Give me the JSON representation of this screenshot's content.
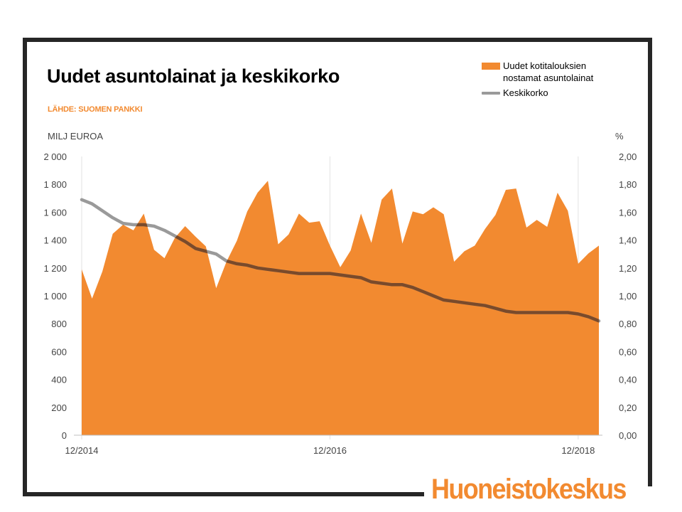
{
  "title": "Uudet asuntolainat ja keskikorko",
  "source": "LÄHDE: SUOMEN PANKKI",
  "logo": "Huoneistokeskus",
  "colors": {
    "area": "#f28a30",
    "line": "#9a9a9a",
    "frame": "#262626"
  },
  "chart_data": {
    "type": "area",
    "left_unit": "MILJ EUROA",
    "right_unit": "%",
    "y_left_ticks": [
      "2 000",
      "1 800",
      "1 600",
      "1 400",
      "1 200",
      "1 000",
      "800",
      "600",
      "400",
      "200",
      "0"
    ],
    "y_right_ticks": [
      "2,00",
      "1,80",
      "1,60",
      "1,40",
      "1,20",
      "1,00",
      "0,80",
      "0,60",
      "0,40",
      "0,20",
      "0,00"
    ],
    "y_left_range": [
      0,
      2000
    ],
    "y_right_range": [
      0,
      2.0
    ],
    "x_tick_labels": [
      "12/2014",
      "12/2016",
      "12/2018"
    ],
    "x_start": "2014-12",
    "x_end": "2019-02",
    "grid": "vertical gridlines at year ticks",
    "legend_position": "top-right",
    "series": [
      {
        "name": "Uudet kotitalouksien nostamat asuntolainat",
        "axis": "left",
        "type": "area",
        "values": [
          1190,
          980,
          1175,
          1445,
          1510,
          1470,
          1590,
          1330,
          1270,
          1415,
          1500,
          1425,
          1355,
          1055,
          1245,
          1395,
          1605,
          1740,
          1825,
          1370,
          1440,
          1590,
          1525,
          1535,
          1360,
          1205,
          1325,
          1590,
          1380,
          1690,
          1770,
          1375,
          1605,
          1585,
          1635,
          1585,
          1245,
          1320,
          1360,
          1480,
          1580,
          1760,
          1770,
          1490,
          1545,
          1495,
          1740,
          1610,
          1230,
          1305,
          1360
        ]
      },
      {
        "name": "Keskikorko",
        "axis": "right",
        "type": "line",
        "values": [
          1.69,
          1.66,
          1.61,
          1.56,
          1.52,
          1.51,
          1.51,
          1.5,
          1.47,
          1.43,
          1.39,
          1.34,
          1.32,
          1.3,
          1.25,
          1.23,
          1.22,
          1.2,
          1.19,
          1.18,
          1.17,
          1.16,
          1.16,
          1.16,
          1.16,
          1.15,
          1.14,
          1.13,
          1.1,
          1.09,
          1.08,
          1.08,
          1.06,
          1.03,
          1.0,
          0.97,
          0.96,
          0.95,
          0.94,
          0.93,
          0.91,
          0.89,
          0.88,
          0.88,
          0.88,
          0.88,
          0.88,
          0.88,
          0.87,
          0.85,
          0.82
        ]
      }
    ]
  }
}
